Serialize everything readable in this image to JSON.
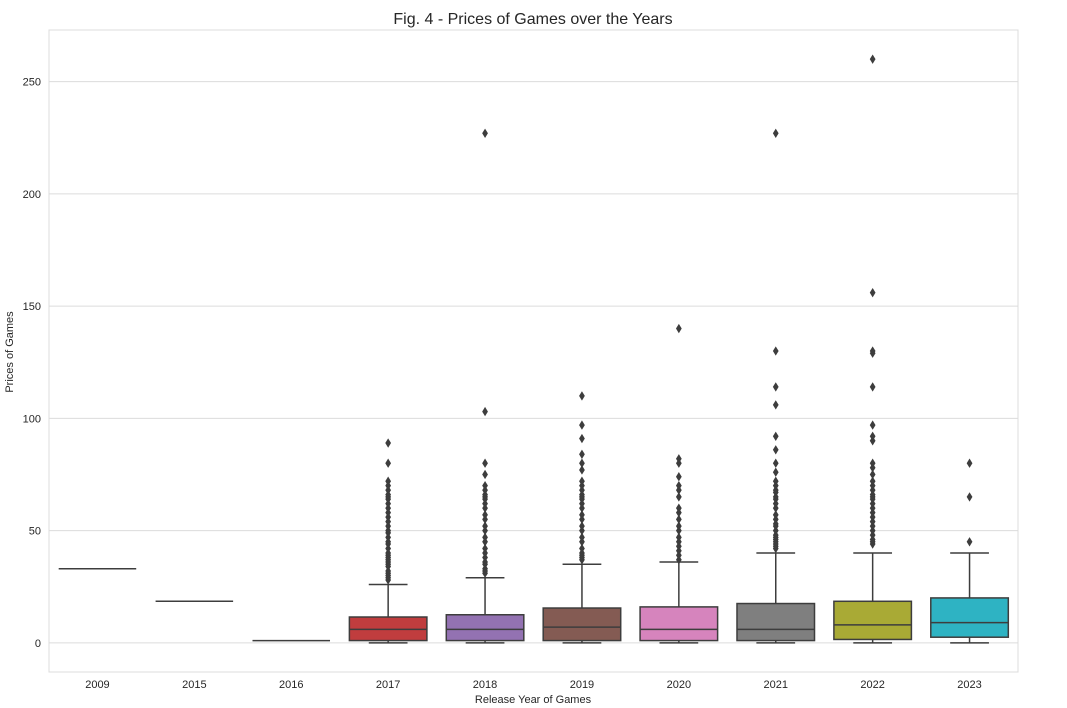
{
  "chart_data": {
    "type": "box",
    "title": "Fig. 4 - Prices of Games over the Years",
    "xlabel": "Release Year of Games",
    "ylabel": "Prices of Games",
    "ylim": [
      -13,
      273
    ],
    "yticks": [
      0,
      50,
      100,
      150,
      200,
      250
    ],
    "grid": true,
    "legend": "none",
    "categories": [
      "2009",
      "2015",
      "2016",
      "2017",
      "2018",
      "2019",
      "2020",
      "2021",
      "2022",
      "2023"
    ],
    "colors": [
      "#3274a1",
      "#e1812c",
      "#3a923a",
      "#c03d3e",
      "#9372b2",
      "#845b53",
      "#d684bd",
      "#7f7f7f",
      "#a9aa35",
      "#2eb3c3"
    ],
    "boxes": [
      {
        "category": "2009",
        "whisker_low": 33,
        "q1": 33,
        "median": 33,
        "q3": 33,
        "whisker_high": 33,
        "outliers": []
      },
      {
        "category": "2015",
        "whisker_low": 18.5,
        "q1": 18.5,
        "median": 18.5,
        "q3": 18.5,
        "whisker_high": 18.5,
        "outliers": []
      },
      {
        "category": "2016",
        "whisker_low": 1,
        "q1": 1,
        "median": 1,
        "q3": 1,
        "whisker_high": 1,
        "outliers": []
      },
      {
        "category": "2017",
        "whisker_low": 0,
        "q1": 1,
        "median": 6,
        "q3": 11.5,
        "whisker_high": 26,
        "outliers": [
          28,
          29,
          30,
          31,
          32,
          34,
          35,
          36,
          37,
          38,
          39,
          40,
          42,
          44,
          45,
          47,
          49,
          50,
          52,
          54,
          56,
          58,
          60,
          62,
          64,
          65,
          66,
          68,
          70,
          72,
          80,
          89
        ]
      },
      {
        "category": "2018",
        "whisker_low": 0,
        "q1": 1,
        "median": 6,
        "q3": 12.5,
        "whisker_high": 29,
        "outliers": [
          31,
          32,
          33,
          35,
          36,
          38,
          40,
          42,
          45,
          47,
          50,
          52,
          55,
          57,
          60,
          62,
          64,
          65,
          66,
          68,
          70,
          75,
          80,
          103,
          227
        ]
      },
      {
        "category": "2019",
        "whisker_low": 0,
        "q1": 1,
        "median": 7,
        "q3": 15.5,
        "whisker_high": 35,
        "outliers": [
          37,
          38,
          39,
          40,
          42,
          45,
          47,
          50,
          52,
          55,
          57,
          60,
          62,
          64,
          65,
          66,
          68,
          70,
          72,
          77,
          80,
          84,
          91,
          97,
          110
        ]
      },
      {
        "category": "2020",
        "whisker_low": 0,
        "q1": 1,
        "median": 6,
        "q3": 16,
        "whisker_high": 36,
        "outliers": [
          37,
          39,
          41,
          43,
          45,
          47,
          50,
          52,
          55,
          58,
          60,
          65,
          68,
          70,
          74,
          80,
          82,
          140
        ]
      },
      {
        "category": "2021",
        "whisker_low": 0,
        "q1": 1,
        "median": 6,
        "q3": 17.5,
        "whisker_high": 40,
        "outliers": [
          42,
          43,
          44,
          45,
          46,
          47,
          48,
          50,
          52,
          53,
          55,
          57,
          60,
          62,
          64,
          65,
          67,
          68,
          70,
          72,
          76,
          80,
          86,
          92,
          106,
          114,
          130,
          227
        ]
      },
      {
        "category": "2022",
        "whisker_low": 0,
        "q1": 1.5,
        "median": 8,
        "q3": 18.5,
        "whisker_high": 40,
        "outliers": [
          44,
          45,
          46,
          48,
          50,
          52,
          54,
          56,
          58,
          60,
          62,
          64,
          65,
          66,
          68,
          70,
          72,
          75,
          78,
          80,
          90,
          92,
          97,
          114,
          129,
          130,
          156,
          260
        ]
      },
      {
        "category": "2023",
        "whisker_low": 0,
        "q1": 2.5,
        "median": 9,
        "q3": 20,
        "whisker_high": 40,
        "outliers": [
          45,
          65,
          80
        ]
      }
    ]
  }
}
